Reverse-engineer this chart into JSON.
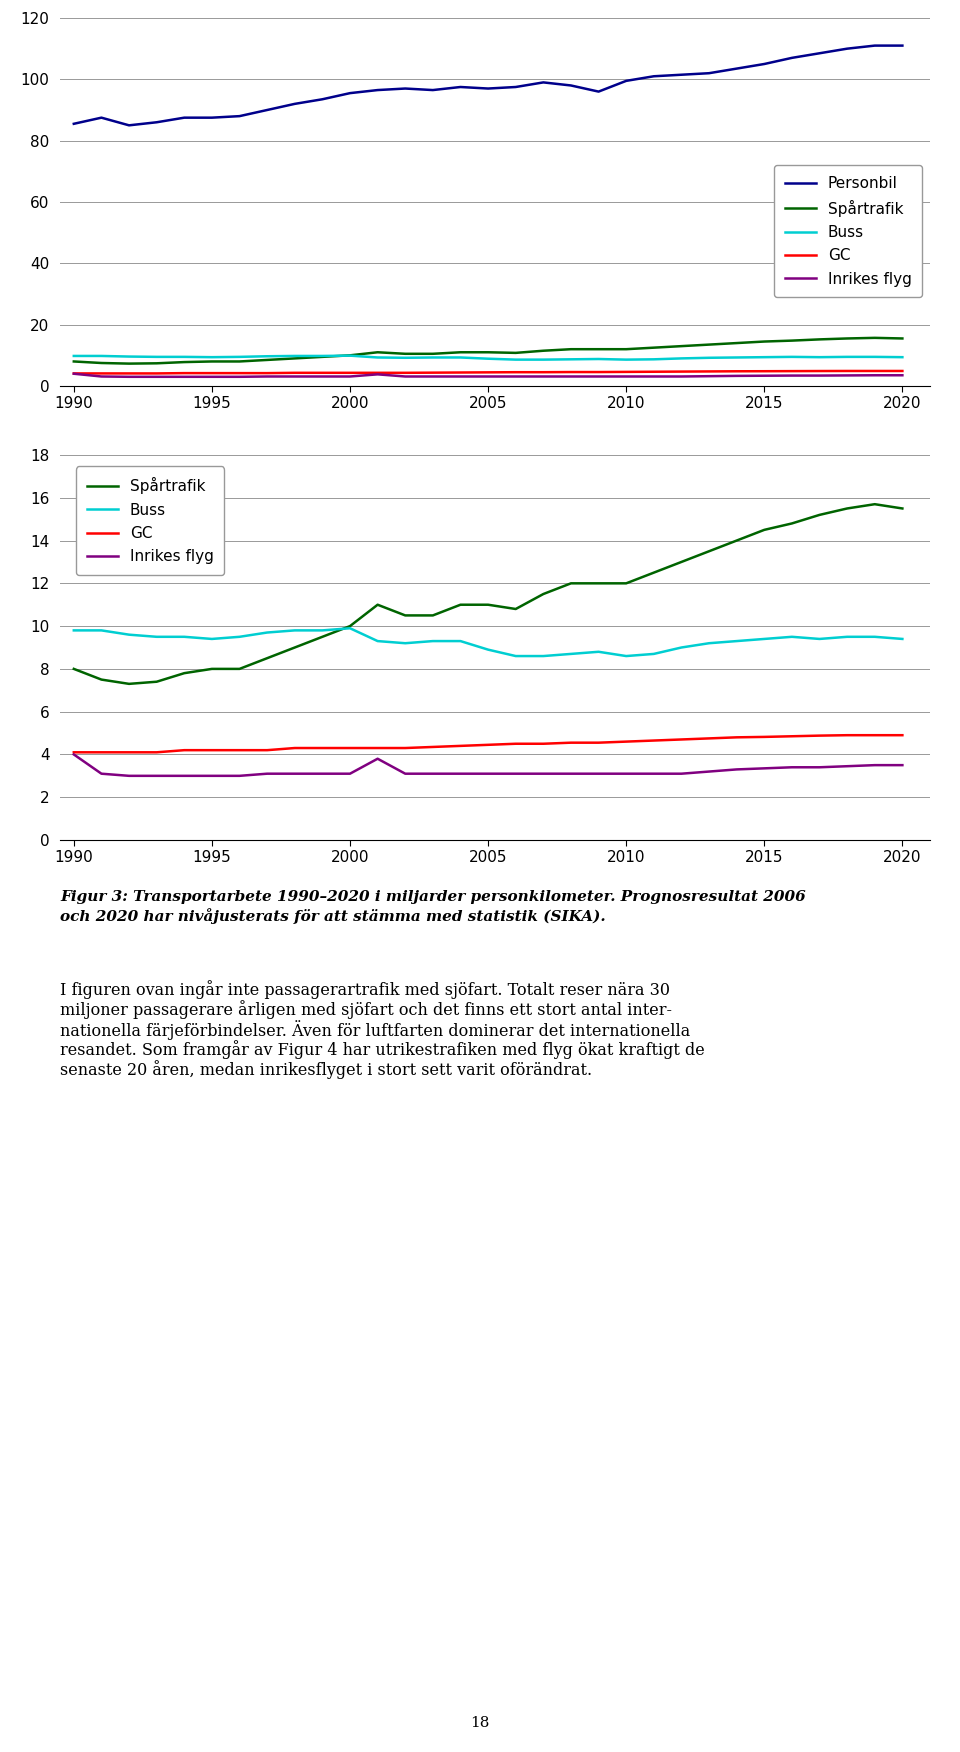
{
  "years": [
    1990,
    1991,
    1992,
    1993,
    1994,
    1995,
    1996,
    1997,
    1998,
    1999,
    2000,
    2001,
    2002,
    2003,
    2004,
    2005,
    2006,
    2007,
    2008,
    2009,
    2010,
    2011,
    2012,
    2013,
    2014,
    2015,
    2016,
    2017,
    2018,
    2019,
    2020
  ],
  "personbil": [
    85.5,
    87.5,
    85.0,
    86.0,
    87.5,
    87.5,
    88.0,
    90.0,
    92.0,
    93.5,
    95.5,
    96.5,
    97.0,
    96.5,
    97.5,
    97.0,
    97.5,
    99.0,
    98.0,
    96.0,
    99.5,
    101.0,
    101.5,
    102.0,
    103.5,
    105.0,
    107.0,
    108.5,
    110.0,
    111.0,
    111.0
  ],
  "spartrafik": [
    8.0,
    7.5,
    7.3,
    7.4,
    7.8,
    8.0,
    8.0,
    8.5,
    9.0,
    9.5,
    10.0,
    11.0,
    10.5,
    10.5,
    11.0,
    11.0,
    10.8,
    11.5,
    12.0,
    12.0,
    12.0,
    12.5,
    13.0,
    13.5,
    14.0,
    14.5,
    14.8,
    15.2,
    15.5,
    15.7,
    15.5
  ],
  "buss": [
    9.8,
    9.8,
    9.6,
    9.5,
    9.5,
    9.4,
    9.5,
    9.7,
    9.8,
    9.8,
    9.9,
    9.3,
    9.2,
    9.3,
    9.3,
    8.9,
    8.6,
    8.6,
    8.7,
    8.8,
    8.6,
    8.7,
    9.0,
    9.2,
    9.3,
    9.4,
    9.5,
    9.4,
    9.5,
    9.5,
    9.4
  ],
  "gc": [
    4.1,
    4.1,
    4.1,
    4.1,
    4.2,
    4.2,
    4.2,
    4.2,
    4.3,
    4.3,
    4.3,
    4.3,
    4.3,
    4.35,
    4.4,
    4.45,
    4.5,
    4.5,
    4.55,
    4.55,
    4.6,
    4.65,
    4.7,
    4.75,
    4.8,
    4.82,
    4.85,
    4.88,
    4.9,
    4.9,
    4.9
  ],
  "inrikesflyg": [
    4.0,
    3.1,
    3.0,
    3.0,
    3.0,
    3.0,
    3.0,
    3.1,
    3.1,
    3.1,
    3.1,
    3.8,
    3.1,
    3.1,
    3.1,
    3.1,
    3.1,
    3.1,
    3.1,
    3.1,
    3.1,
    3.1,
    3.1,
    3.2,
    3.3,
    3.35,
    3.4,
    3.4,
    3.45,
    3.5,
    3.5
  ],
  "color_personbil": "#00008B",
  "color_spartrafik": "#006400",
  "color_buss": "#00CED1",
  "color_gc": "#FF0000",
  "color_inrikesflyg": "#800080",
  "chart1_ylim": [
    0,
    120
  ],
  "chart1_yticks": [
    0,
    20,
    40,
    60,
    80,
    100,
    120
  ],
  "chart2_ylim": [
    0,
    18
  ],
  "chart2_yticks": [
    0,
    2,
    4,
    6,
    8,
    10,
    12,
    14,
    16,
    18
  ],
  "xticks": [
    1990,
    1995,
    2000,
    2005,
    2010,
    2015,
    2020
  ],
  "xlim": [
    1989.5,
    2021.0
  ],
  "caption_line1": "Figur 3: Transportarbete 1990–2020 i miljarder personkilometer. Prognosresultat 2006",
  "caption_line2": "och 2020 har nivåjusterats för att stämma med statistik (SIKA).",
  "body_line1": "I figuren ovan ingår inte passagerartrafik med sjöfart. Totalt reser nära 30",
  "body_line2": "miljoner passagerare årligen med sjöfart och det finns ett stort antal inter-",
  "body_line3": "nationella färjeförbindelser. Även för luftfarten dominerar det internationella",
  "body_line4": "resandet. Som framgår av Figur 4 har utrikestrafiken med flyg ökat kraftigt de",
  "body_line5": "senaste 20 åren, medan inrikesflyget i stort sett varit oförändrat.",
  "page_number": "18",
  "linewidth": 1.8
}
